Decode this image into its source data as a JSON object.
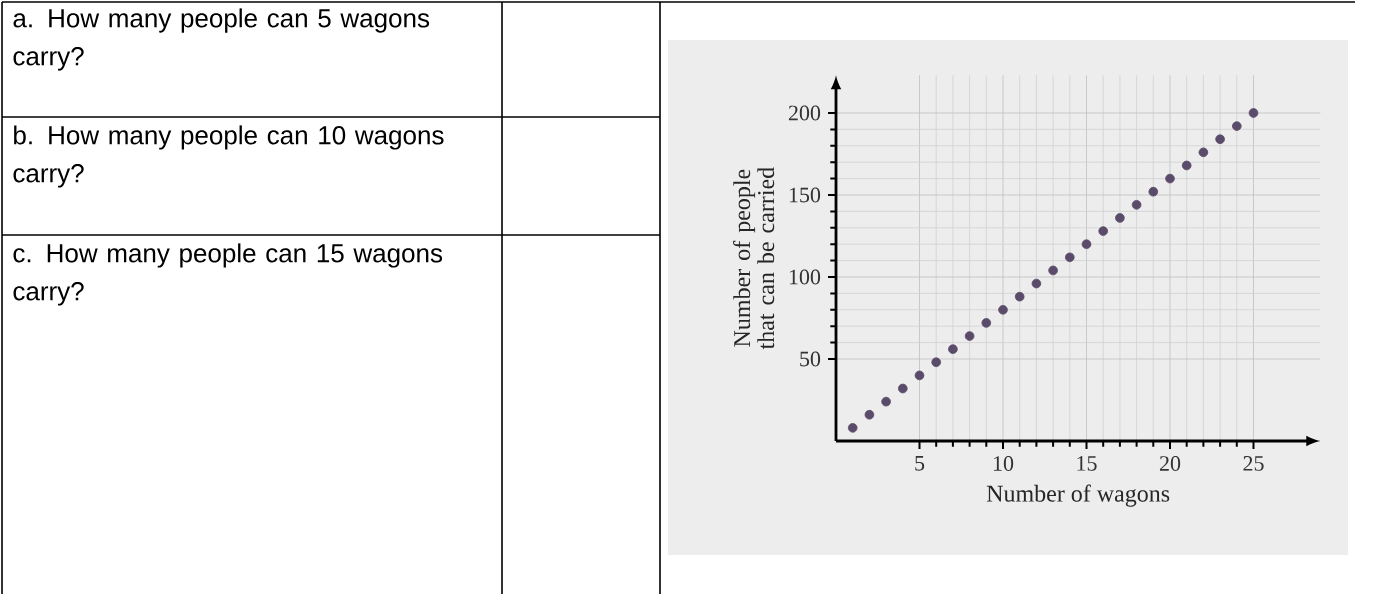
{
  "chart_data": {
    "type": "scatter",
    "xlabel": "Number of wagons",
    "ylabel": "Number of people that can be carried",
    "annotations": [
      "a. How many people can 5 wagons carry?",
      "b. How many people can 10 wagons carry?",
      "c. How many people can 15 wagons carry?"
    ],
    "x": [
      1,
      2,
      3,
      4,
      5,
      6,
      7,
      8,
      9,
      10,
      11,
      12,
      13,
      14,
      15,
      16,
      17,
      18,
      19,
      20,
      21,
      22,
      23,
      24,
      25
    ],
    "values": [
      8,
      16,
      24,
      32,
      40,
      48,
      56,
      64,
      72,
      80,
      88,
      96,
      104,
      112,
      120,
      128,
      136,
      144,
      152,
      160,
      168,
      176,
      184,
      192,
      200
    ],
    "color": "#5b4b6b",
    "marker": "circle",
    "grid": true,
    "xlim": [
      0,
      29
    ],
    "ylim": [
      0,
      223
    ],
    "xticks": [
      5,
      10,
      15,
      20,
      25
    ],
    "yticks": [
      50,
      100,
      150,
      200
    ]
  }
}
